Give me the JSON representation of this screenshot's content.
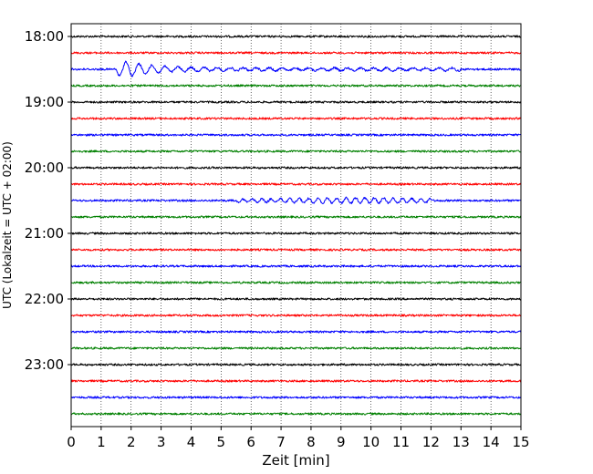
{
  "chart_data": {
    "type": "line",
    "title": "",
    "xlabel": "Zeit  [min]",
    "ylabel": "UTC (Lokalzeit = UTC + 02:00)",
    "xlim": [
      0,
      15
    ],
    "x_ticks": [
      "0",
      "1",
      "2",
      "3",
      "4",
      "5",
      "6",
      "7",
      "8",
      "9",
      "10",
      "11",
      "12",
      "13",
      "14",
      "15"
    ],
    "y_tick_labels": [
      "18:00",
      "19:00",
      "20:00",
      "21:00",
      "22:00",
      "23:00"
    ],
    "grid": "vertical dotted",
    "trace_interval_min": 15,
    "trace_start": "18:00",
    "trace_colors": [
      "#000000",
      "#ff0000",
      "#0000ff",
      "#008000"
    ],
    "events": [
      {
        "trace": "18:30",
        "color": "blue",
        "start_min": 1.5,
        "peak_min": 1.85,
        "end_min": 13.0,
        "amplitude": "strong"
      },
      {
        "trace": "20:30",
        "color": "blue",
        "start_min": 5.5,
        "peak_min": 9.6,
        "end_min": 12.0,
        "amplitude": "weak"
      }
    ],
    "series": [
      {
        "start": "18:00",
        "color": "black"
      },
      {
        "start": "18:15",
        "color": "red"
      },
      {
        "start": "18:30",
        "color": "blue"
      },
      {
        "start": "18:45",
        "color": "green"
      },
      {
        "start": "19:00",
        "color": "black"
      },
      {
        "start": "19:15",
        "color": "red"
      },
      {
        "start": "19:30",
        "color": "blue"
      },
      {
        "start": "19:45",
        "color": "green"
      },
      {
        "start": "20:00",
        "color": "black"
      },
      {
        "start": "20:15",
        "color": "red"
      },
      {
        "start": "20:30",
        "color": "blue"
      },
      {
        "start": "20:45",
        "color": "green"
      },
      {
        "start": "21:00",
        "color": "black"
      },
      {
        "start": "21:15",
        "color": "red"
      },
      {
        "start": "21:30",
        "color": "blue"
      },
      {
        "start": "21:45",
        "color": "green"
      },
      {
        "start": "22:00",
        "color": "black"
      },
      {
        "start": "22:15",
        "color": "red"
      },
      {
        "start": "22:30",
        "color": "blue"
      },
      {
        "start": "22:45",
        "color": "green"
      },
      {
        "start": "23:00",
        "color": "black"
      },
      {
        "start": "23:15",
        "color": "red"
      },
      {
        "start": "23:30",
        "color": "blue"
      },
      {
        "start": "23:45",
        "color": "green"
      }
    ]
  }
}
